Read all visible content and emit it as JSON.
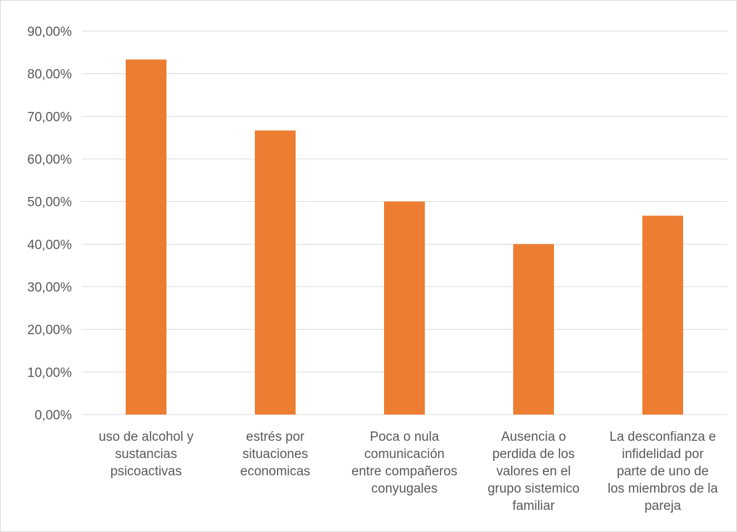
{
  "chart_data": {
    "type": "bar",
    "title": "",
    "xlabel": "",
    "ylabel": "",
    "categories": [
      "uso de alcohol y\nsustancias\npsicoactivas",
      "estrés por\nsituaciones\neconomicas",
      "Poca o nula\ncomunicación\nentre compañeros\nconyugales",
      "Ausencia o\nperdida de los\nvalores en el\ngrupo sistemico\nfamiliar",
      "La desconfianza e\ninfidelidad por\nparte  de uno de\nlos miembros de la\npareja"
    ],
    "values": [
      83.33,
      66.67,
      50.0,
      40.0,
      46.67
    ],
    "ylim": [
      0,
      90
    ],
    "yticks": [
      "0,00%",
      "10,00%",
      "20,00%",
      "30,00%",
      "40,00%",
      "50,00%",
      "60,00%",
      "70,00%",
      "80,00%",
      "90,00%"
    ],
    "grid": true,
    "legend": "none",
    "bar_color": "#ED7D31",
    "grid_color": "#d9d9d9"
  }
}
